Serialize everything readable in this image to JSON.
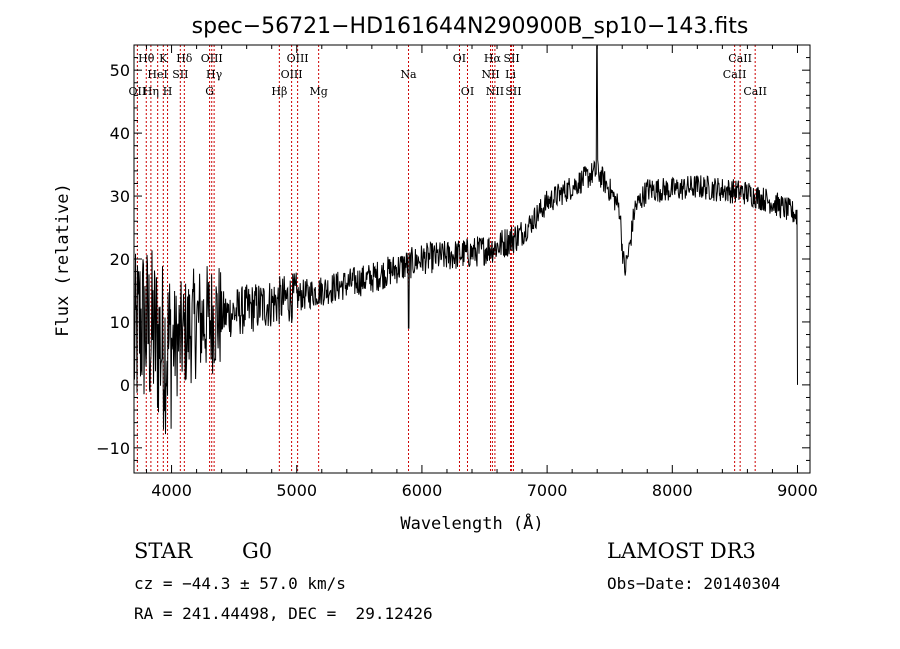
{
  "chart_data": {
    "type": "line",
    "title": "spec−56721−HD161644N290900B_sp10−143.fits",
    "xlabel": "Wavelength (Å)",
    "ylabel": "Flux (relative)",
    "xlim": [
      3700,
      9100
    ],
    "ylim": [
      -14,
      54
    ],
    "xticks": [
      4000,
      5000,
      6000,
      7000,
      8000,
      9000
    ],
    "yticks": [
      -10,
      0,
      10,
      20,
      30,
      40,
      50
    ],
    "ytick_labels": [
      "−10",
      "0",
      "10",
      "20",
      "30",
      "40",
      "50"
    ],
    "grid": false,
    "line_color": "#000000",
    "marker_color": "#cc0000",
    "lines": [
      {
        "label": "Hθ",
        "wl": 3798,
        "row": 1
      },
      {
        "label": "OII",
        "wl": 3727,
        "row": 3
      },
      {
        "label": "Hη",
        "wl": 3835,
        "row": 3
      },
      {
        "label": "HeI",
        "wl": 3889,
        "row": 2
      },
      {
        "label": "K",
        "wl": 3934,
        "row": 1
      },
      {
        "label": "H",
        "wl": 3968,
        "row": 3
      },
      {
        "label": "SII",
        "wl": 4070,
        "row": 2
      },
      {
        "label": "Hδ",
        "wl": 4102,
        "row": 1
      },
      {
        "label": "OIII",
        "wl": 4321,
        "row": 1
      },
      {
        "label": "Hγ",
        "wl": 4340,
        "row": 2
      },
      {
        "label": "G",
        "wl": 4304,
        "row": 3
      },
      {
        "label": "Hβ",
        "wl": 4861,
        "row": 3
      },
      {
        "label": "OIII",
        "wl": 5007,
        "row": 1
      },
      {
        "label": "OIII",
        "wl": 4959,
        "row": 2
      },
      {
        "label": "Mg",
        "wl": 5175,
        "row": 3
      },
      {
        "label": "Na",
        "wl": 5893,
        "row": 2
      },
      {
        "label": "OI",
        "wl": 6300,
        "row": 1
      },
      {
        "label": "OI",
        "wl": 6364,
        "row": 3
      },
      {
        "label": "Hα",
        "wl": 6563,
        "row": 1
      },
      {
        "label": "NII",
        "wl": 6548,
        "row": 2
      },
      {
        "label": "NII",
        "wl": 6583,
        "row": 3
      },
      {
        "label": "SII",
        "wl": 6716,
        "row": 1
      },
      {
        "label": "Li",
        "wl": 6708,
        "row": 2
      },
      {
        "label": "SII",
        "wl": 6731,
        "row": 3
      },
      {
        "label": "CaII",
        "wl": 8542,
        "row": 1
      },
      {
        "label": "CaII",
        "wl": 8498,
        "row": 2
      },
      {
        "label": "CaII",
        "wl": 8662,
        "row": 3
      }
    ],
    "spectrum_anchors": [
      [
        3700,
        6
      ],
      [
        3750,
        10
      ],
      [
        3850,
        8
      ],
      [
        3950,
        6
      ],
      [
        4050,
        7
      ],
      [
        4200,
        10
      ],
      [
        4400,
        11
      ],
      [
        4600,
        12
      ],
      [
        4800,
        13
      ],
      [
        5000,
        14
      ],
      [
        5200,
        15
      ],
      [
        5400,
        16
      ],
      [
        5600,
        17
      ],
      [
        5800,
        18.5
      ],
      [
        6000,
        20
      ],
      [
        6200,
        20.5
      ],
      [
        6400,
        21
      ],
      [
        6600,
        22
      ],
      [
        6800,
        24
      ],
      [
        7000,
        29
      ],
      [
        7200,
        31.5
      ],
      [
        7400,
        34
      ],
      [
        7500,
        31
      ],
      [
        7580,
        28
      ],
      [
        7600,
        22
      ],
      [
        7620,
        18
      ],
      [
        7660,
        22
      ],
      [
        7700,
        28
      ],
      [
        7800,
        31
      ],
      [
        8000,
        31
      ],
      [
        8200,
        31.5
      ],
      [
        8400,
        31
      ],
      [
        8600,
        30.5
      ],
      [
        8800,
        29
      ],
      [
        9000,
        27
      ]
    ],
    "features": [
      {
        "wl": 7398,
        "flux": 54
      },
      {
        "wl": 5893,
        "flux": 9
      },
      {
        "wl": 9000,
        "flux": 0
      }
    ]
  },
  "info": {
    "object_class": "STAR",
    "subclass": "G0",
    "survey": "LAMOST DR3",
    "redshift": "cz = −44.3 ± 57.0 km/s",
    "obs_date": "Obs−Date: 20140304",
    "coords": "RA = 241.44498, DEC =  29.12426"
  }
}
